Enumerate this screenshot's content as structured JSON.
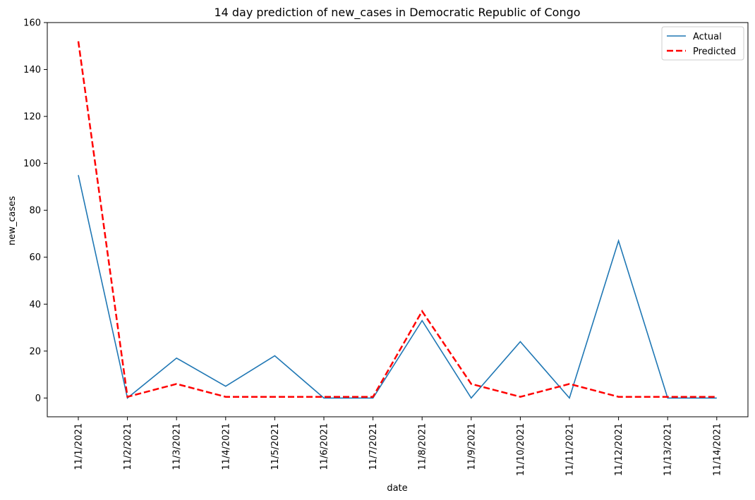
{
  "chart_data": {
    "type": "line",
    "title": "14 day prediction of new_cases in Democratic Republic of Congo",
    "xlabel": "date",
    "ylabel": "new_cases",
    "categories": [
      "11/1/2021",
      "11/2/2021",
      "11/3/2021",
      "11/4/2021",
      "11/5/2021",
      "11/6/2021",
      "11/7/2021",
      "11/8/2021",
      "11/9/2021",
      "11/10/2021",
      "11/11/2021",
      "11/12/2021",
      "11/13/2021",
      "11/14/2021"
    ],
    "ylim": [
      -8,
      160
    ],
    "yticks": [
      0,
      20,
      40,
      60,
      80,
      100,
      120,
      140,
      160
    ],
    "grid": false,
    "legend_position": "top-right",
    "series": [
      {
        "name": "Actual",
        "color": "#1f77b4",
        "style": "solid",
        "values": [
          95,
          0,
          17,
          5,
          18,
          0,
          0,
          33,
          0,
          24,
          0,
          67,
          0,
          0
        ]
      },
      {
        "name": "Predicted",
        "color": "#ff0000",
        "style": "dashed",
        "values": [
          152,
          0.5,
          6,
          0.5,
          0.5,
          0.5,
          0.5,
          37,
          6,
          0.5,
          6,
          0.5,
          0.5,
          0.5
        ]
      }
    ]
  }
}
